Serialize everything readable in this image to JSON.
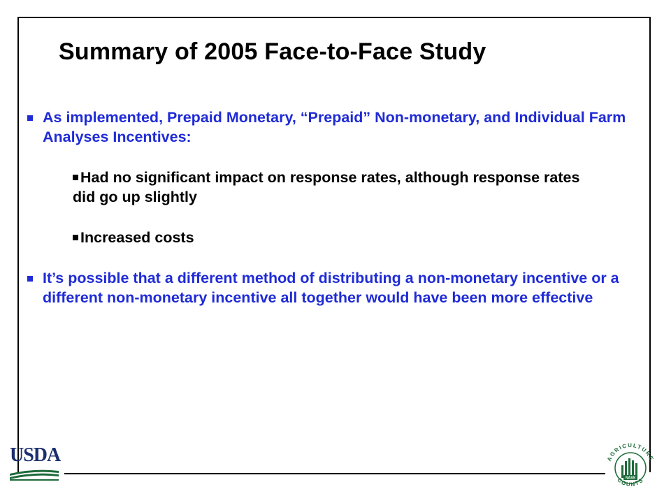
{
  "slide": {
    "title": "Summary of 2005 Face-to-Face Study",
    "bullets": [
      {
        "level": 1,
        "text": "As implemented, Prepaid Monetary, “Prepaid” Non-monetary, and Individual Farm Analyses Incentives:"
      },
      {
        "level": 2,
        "text": "Had no significant impact on response rates, although response rates did go up slightly"
      },
      {
        "level": 2,
        "text": "Increased costs"
      },
      {
        "level": 1,
        "text": "It’s possible that a different method of distributing a non-monetary incentive or a different non-monetary incentive all together would have been more effective"
      }
    ]
  },
  "logos": {
    "usda": {
      "text": "USDA",
      "icon": "usda-logo-icon",
      "color": "#1b2f6e",
      "accent": "#1e6b3a"
    },
    "nass": {
      "arc_top": "AGRICULTURE",
      "arc_bottom": "COUNTS",
      "badge": "NASS",
      "icon": "nass-agriculture-counts-logo-icon",
      "color": "#1e6b3a"
    }
  },
  "colors": {
    "bullet_level1": "#1f2bd6",
    "bullet_level2": "#000000",
    "title": "#000000"
  }
}
